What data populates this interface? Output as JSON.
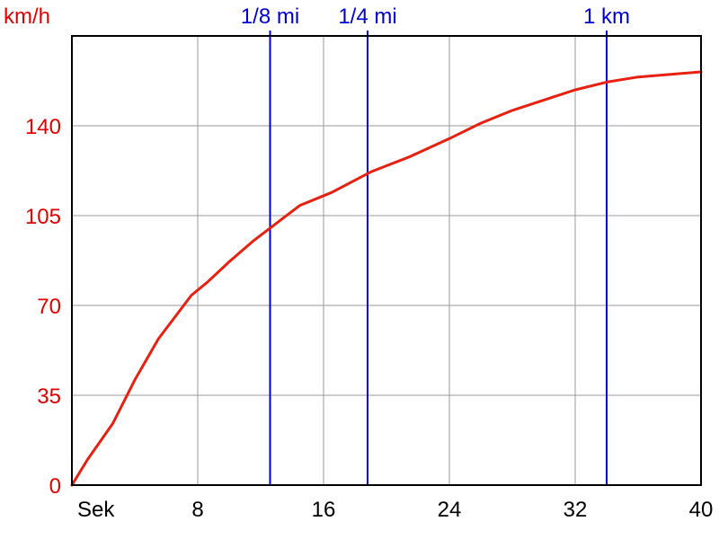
{
  "chart_data": {
    "type": "line",
    "title": "",
    "ylabel": "km/h",
    "xlabel": "Sek",
    "x_ticks": [
      8,
      16,
      24,
      32,
      40
    ],
    "y_ticks": [
      0,
      35,
      70,
      105,
      140
    ],
    "xlim": [
      0,
      40
    ],
    "ylim": [
      0,
      175
    ],
    "grid": true,
    "series": [
      {
        "color": "#e82010",
        "x": [
          0,
          1,
          2.6,
          4,
          5.5,
          7.6,
          8.6,
          10,
          11.5,
          13,
          14.5,
          16.5,
          19,
          21.5,
          24,
          26,
          28,
          30,
          32,
          34,
          36,
          38,
          40
        ],
        "y": [
          0,
          10,
          24,
          41,
          57,
          74,
          79,
          87,
          95,
          102,
          109,
          114,
          122,
          128,
          135,
          141,
          146,
          150,
          154,
          157,
          159,
          160,
          161
        ]
      }
    ],
    "markers": [
      {
        "label": "1/8 mi",
        "x": 12.6,
        "color": "#0000cc"
      },
      {
        "label": "1/4 mi",
        "x": 18.8,
        "color": "#0000cc"
      },
      {
        "label": "1 km",
        "x": 34,
        "color": "#0000cc"
      }
    ]
  }
}
